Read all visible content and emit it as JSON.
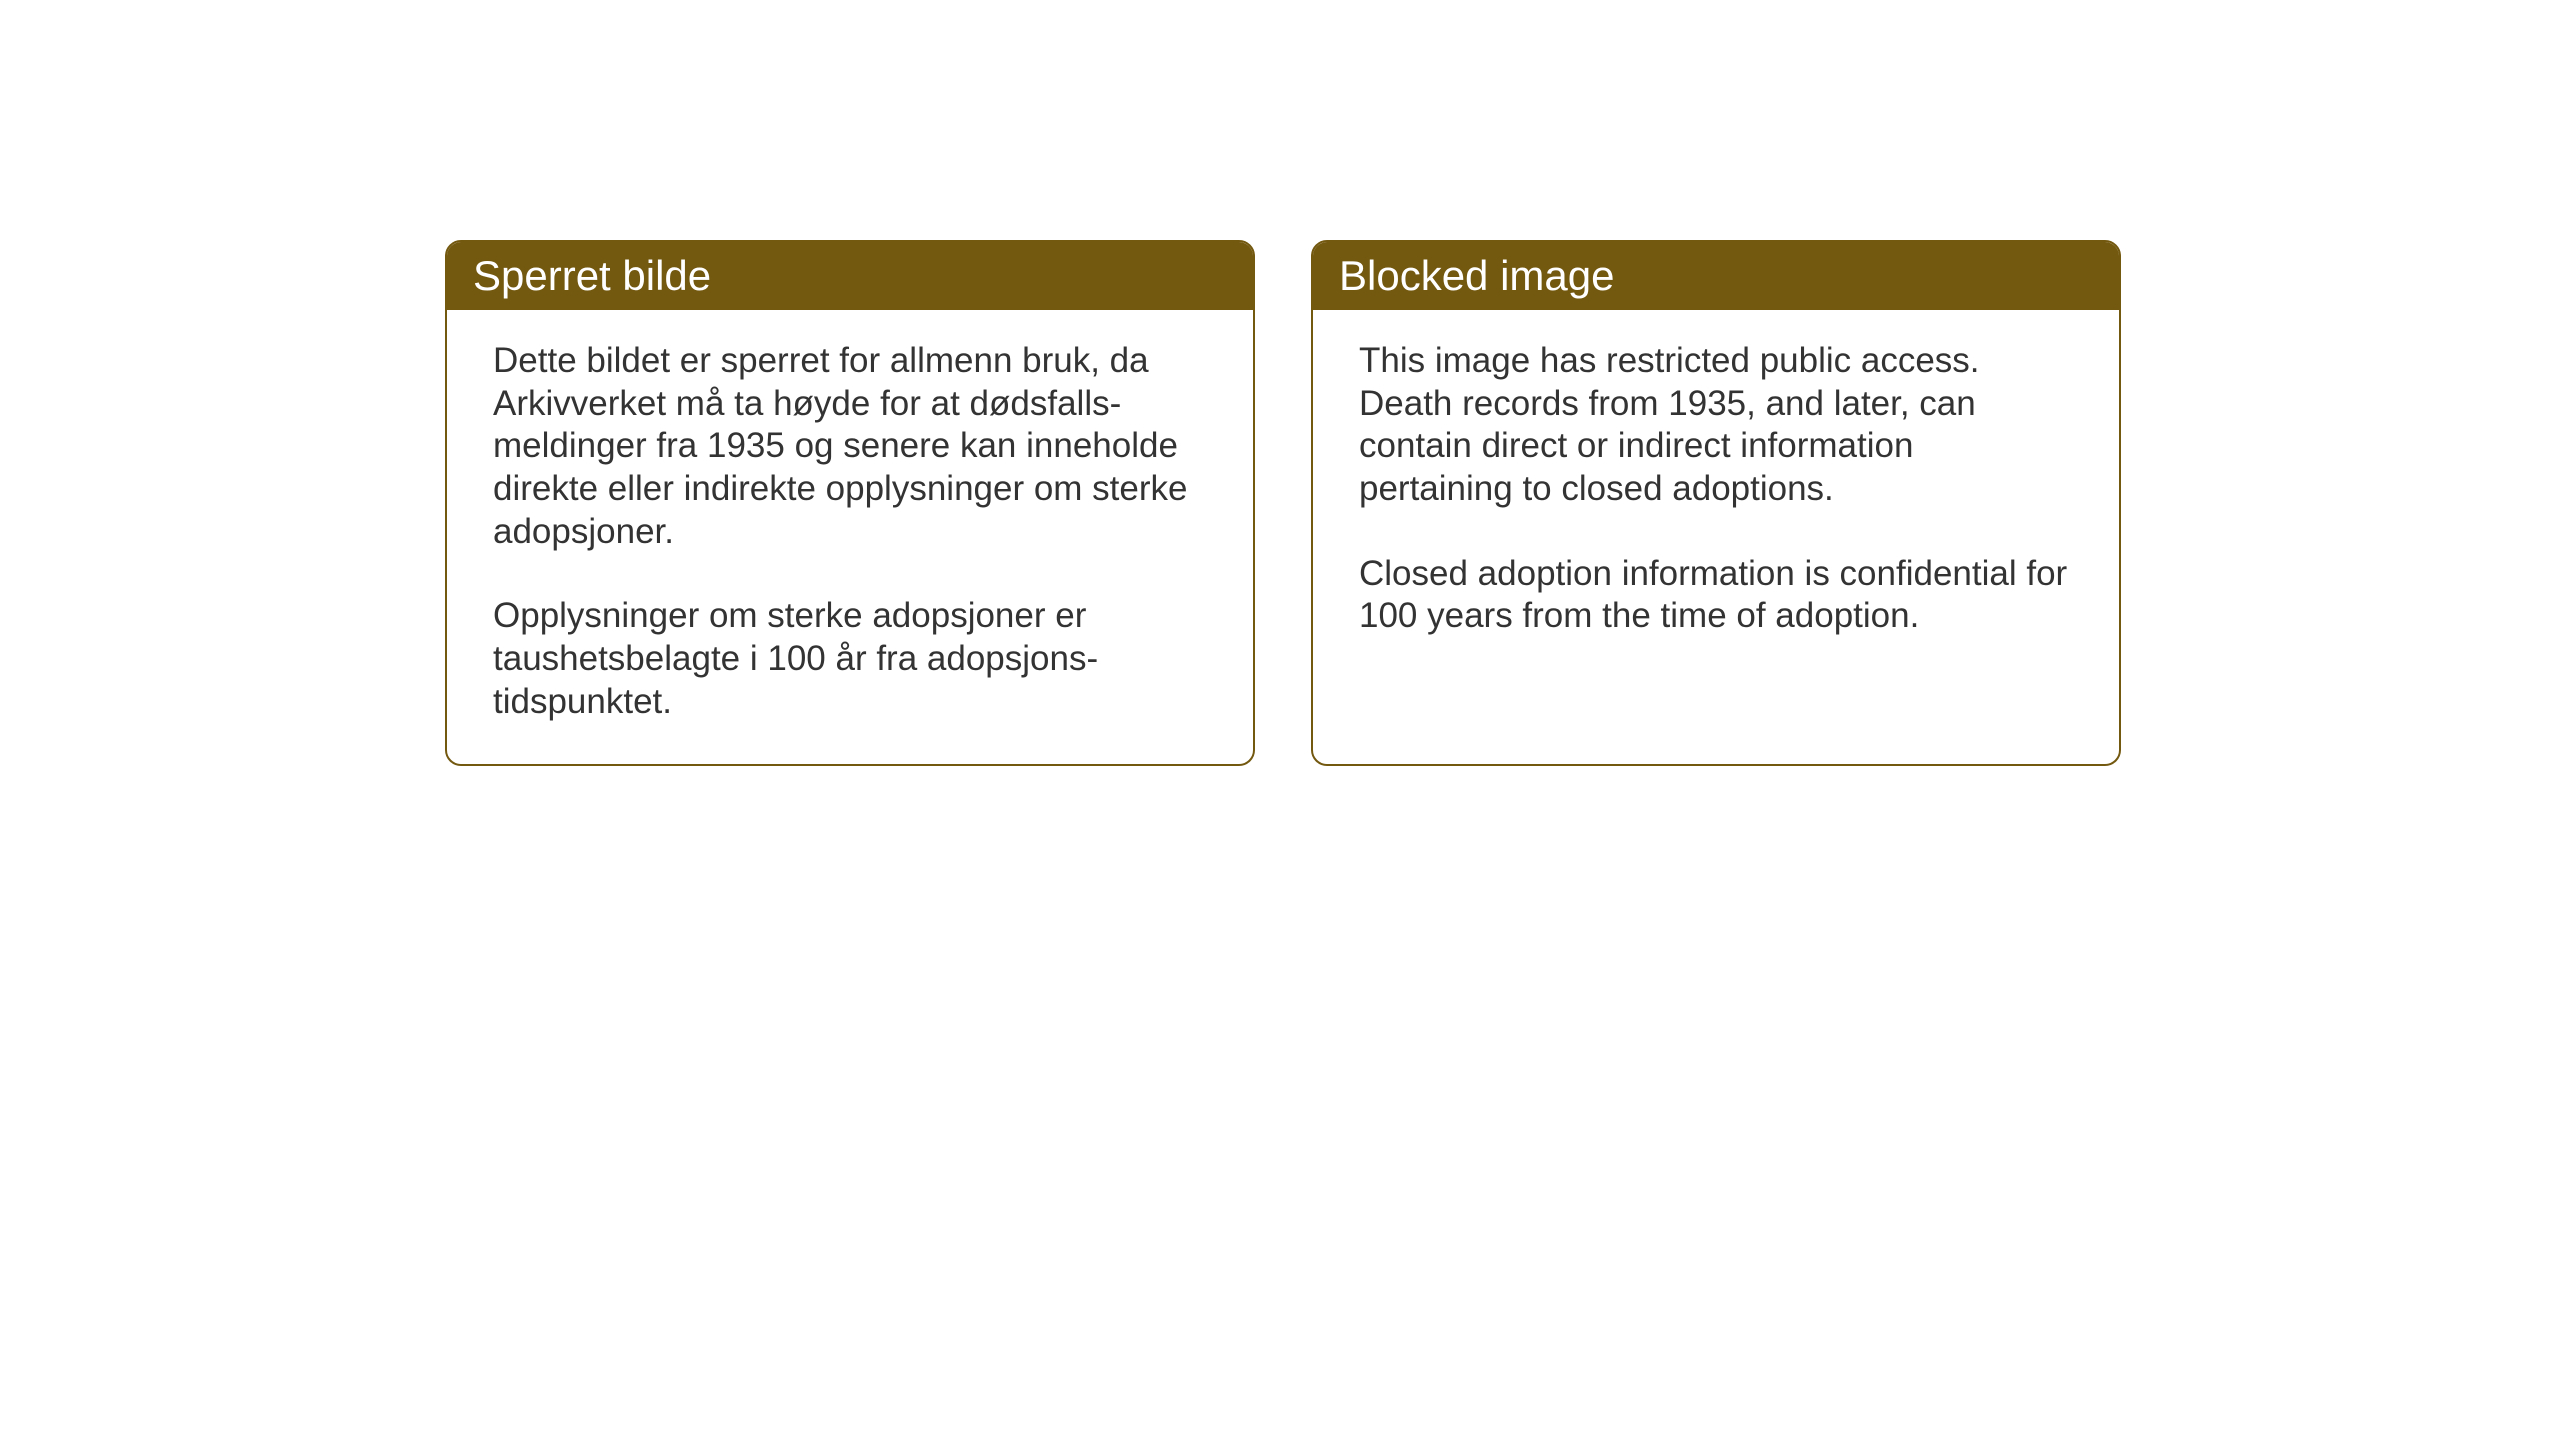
{
  "cards": {
    "norwegian": {
      "title": "Sperret bilde",
      "paragraph1": "Dette bildet er sperret for allmenn bruk, da Arkivverket må ta høyde for at dødsfalls-meldinger fra 1935 og senere kan inneholde direkte eller indirekte opplysninger om sterke adopsjoner.",
      "paragraph2": "Opplysninger om sterke adopsjoner er taushetsbelagte i 100 år fra adopsjons-tidspunktet."
    },
    "english": {
      "title": "Blocked image",
      "paragraph1": "This image has restricted public access. Death records from 1935, and later, can contain direct or indirect information pertaining to closed adoptions.",
      "paragraph2": "Closed adoption information is confidential for 100 years from the time of adoption."
    }
  },
  "styling": {
    "header_bg_color": "#735810",
    "header_text_color": "#ffffff",
    "border_color": "#735810",
    "body_text_color": "#333333",
    "card_bg_color": "#ffffff",
    "page_bg_color": "#ffffff",
    "border_radius": 16,
    "header_fontsize": 42,
    "body_fontsize": 35
  }
}
